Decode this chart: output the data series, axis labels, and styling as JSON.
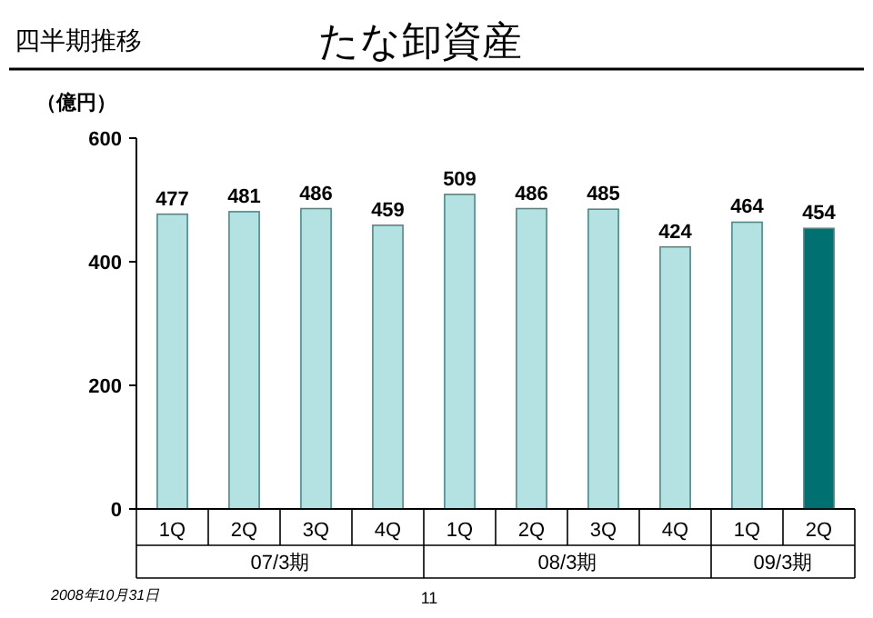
{
  "chart_data": {
    "type": "bar",
    "title": "たな卸資産",
    "subtitle": "四半期推移",
    "ylabel": "（億円）",
    "categories": [
      "1Q",
      "2Q",
      "3Q",
      "4Q",
      "1Q",
      "2Q",
      "3Q",
      "4Q",
      "1Q",
      "2Q"
    ],
    "values": [
      477,
      481,
      486,
      459,
      509,
      486,
      485,
      424,
      464,
      454
    ],
    "colors": [
      "#b4e2e2",
      "#b4e2e2",
      "#b4e2e2",
      "#b4e2e2",
      "#b4e2e2",
      "#b4e2e2",
      "#b4e2e2",
      "#b4e2e2",
      "#b4e2e2",
      "#007070"
    ],
    "ylim": [
      0,
      600
    ],
    "yticks": [
      0,
      200,
      400,
      600
    ],
    "data_labels": true,
    "grid": false,
    "annotations": [
      "07/3期",
      "08/3期",
      "09/3期",
      "2008年10月31日",
      "11"
    ]
  }
}
